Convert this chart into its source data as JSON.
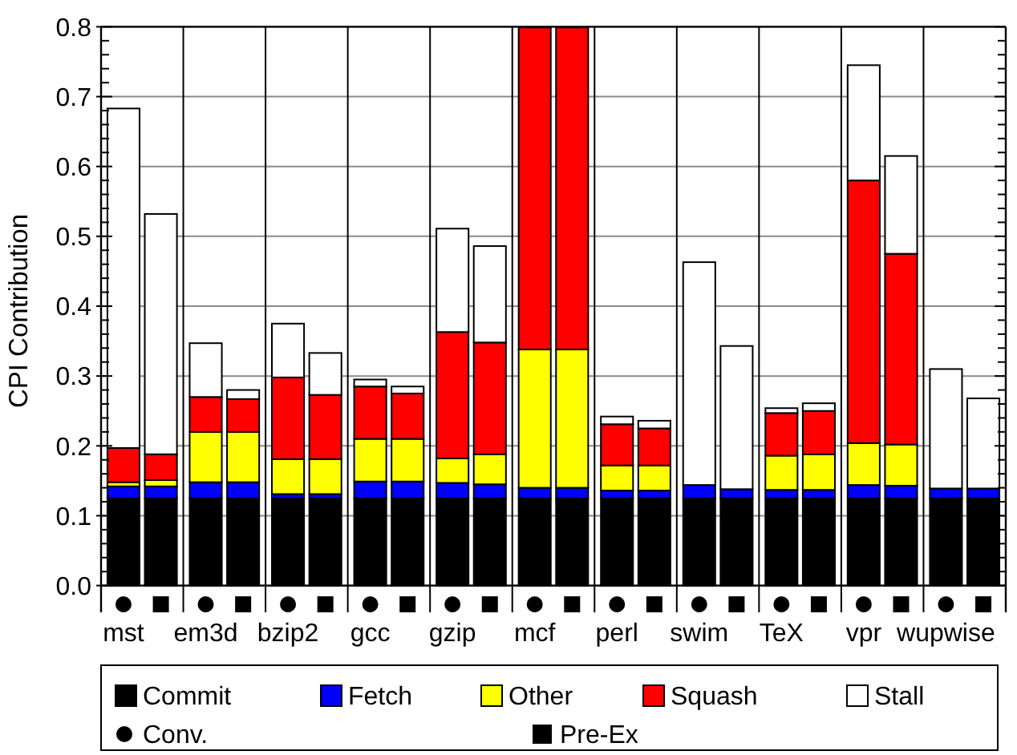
{
  "chart_data": {
    "type": "bar",
    "stacked": true,
    "ylabel": "CPI Contribution",
    "categories": [
      "mst",
      null,
      "em3d",
      null,
      "bzip2",
      null,
      "gcc",
      null,
      "gzip",
      null,
      "mcf",
      null,
      "perl",
      null,
      "swim",
      null,
      "TeX",
      null,
      "vpr",
      null,
      "wupwise",
      null
    ],
    "series": [
      {
        "name": "Commit",
        "color": "#000000",
        "values": [
          0.125,
          0.125,
          0.125,
          0.125,
          0.125,
          0.125,
          0.125,
          0.125,
          0.125,
          0.125,
          0.125,
          0.125,
          0.125,
          0.125,
          0.125,
          0.125,
          0.125,
          0.125,
          0.125,
          0.125,
          0.125,
          0.125
        ]
      },
      {
        "name": "Fetch",
        "color": "#0000ff",
        "values": [
          0.017,
          0.017,
          0.023,
          0.023,
          0.006,
          0.006,
          0.024,
          0.024,
          0.022,
          0.02,
          0.015,
          0.015,
          0.011,
          0.011,
          0.019,
          0.013,
          0.012,
          0.012,
          0.019,
          0.018,
          0.014,
          0.014
        ]
      },
      {
        "name": "Other",
        "color": "#ffff00",
        "values": [
          0.006,
          0.009,
          0.072,
          0.072,
          0.05,
          0.05,
          0.061,
          0.061,
          0.035,
          0.043,
          0.198,
          0.198,
          0.036,
          0.036,
          0,
          0,
          0.049,
          0.051,
          0.06,
          0.059,
          0,
          0
        ]
      },
      {
        "name": "Squash",
        "color": "#ff0000",
        "values": [
          0.049,
          0.037,
          0.05,
          0.047,
          0.117,
          0.092,
          0.075,
          0.065,
          0.181,
          0.16,
          0.461,
          0.461,
          0.059,
          0.053,
          0,
          0,
          0.061,
          0.062,
          0.376,
          0.273,
          0,
          0
        ]
      },
      {
        "name": "Stall",
        "color": "#ffffff",
        "values": [
          0.486,
          0.344,
          0.077,
          0.013,
          0.077,
          0.06,
          0.01,
          0.01,
          0.148,
          0.138,
          null,
          null,
          0.011,
          0.011,
          0.319,
          0.205,
          0.007,
          0.011,
          0.165,
          0.14,
          0.171,
          0.129
        ]
      }
    ],
    "ylim": [
      0,
      0.8
    ],
    "yticks": [
      {
        "value": 0,
        "label": "0.0"
      },
      {
        "value": 0.02,
        "label": null
      },
      {
        "value": 0.04,
        "label": null
      },
      {
        "value": 0.06,
        "label": null
      },
      {
        "value": 0.08,
        "label": null
      },
      0.1,
      {
        "value": 0.12,
        "label": null
      },
      {
        "value": 0.14,
        "label": null
      },
      {
        "value": 0.16,
        "label": null
      },
      {
        "value": 0.18,
        "label": null
      },
      0.2,
      {
        "value": 0.22,
        "label": null
      },
      {
        "value": 0.24,
        "label": null
      },
      {
        "value": 0.26,
        "label": null
      },
      {
        "value": 0.28,
        "label": null
      },
      0.3,
      {
        "value": 0.32,
        "label": null
      },
      {
        "value": 0.34,
        "label": null
      },
      {
        "value": 0.36,
        "label": null
      },
      {
        "value": 0.38,
        "label": null
      },
      0.4,
      {
        "value": 0.42,
        "label": null
      },
      {
        "value": 0.44,
        "label": null
      },
      {
        "value": 0.46,
        "label": null
      },
      {
        "value": 0.48,
        "label": null
      },
      0.5,
      {
        "value": 0.52,
        "label": null
      },
      {
        "value": 0.54,
        "label": null
      },
      {
        "value": 0.56,
        "label": null
      },
      {
        "value": 0.58,
        "label": null
      },
      0.6,
      {
        "value": 0.62,
        "label": null
      },
      {
        "value": 0.64,
        "label": null
      },
      {
        "value": 0.66,
        "label": null
      },
      {
        "value": 0.68,
        "label": null
      },
      0.7,
      {
        "value": 0.72,
        "label": null
      },
      {
        "value": 0.74,
        "label": null
      },
      {
        "value": 0.76,
        "label": null
      },
      {
        "value": 0.78,
        "label": null
      },
      0.8
    ],
    "grid": true,
    "legend": "bottom",
    "annotations": [
      "Conv.",
      "Pre-Ex"
    ]
  }
}
